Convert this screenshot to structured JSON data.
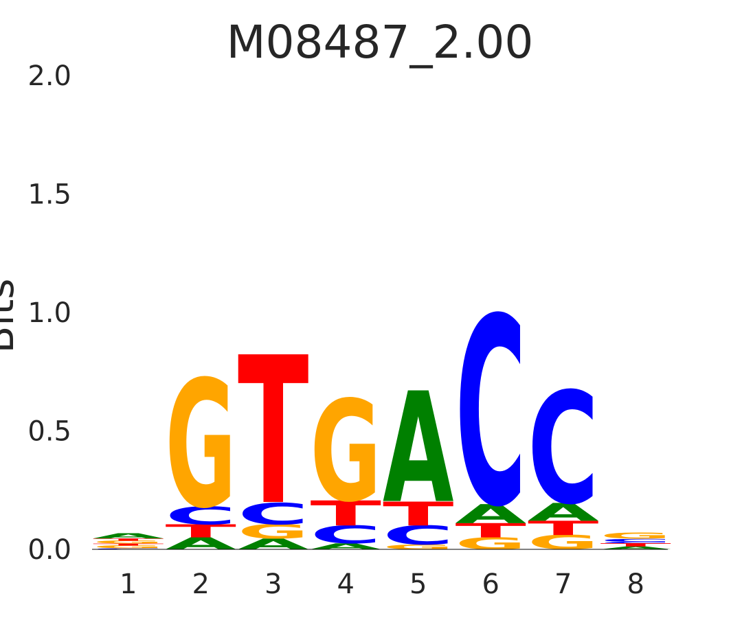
{
  "chart_data": {
    "type": "sequence-logo",
    "title": "M08487_2.00",
    "ylabel": "Bits",
    "ylim": [
      0,
      2.0
    ],
    "yticks": [
      "2.0",
      "1.5",
      "1.0",
      "0.5",
      "0.0"
    ],
    "ytick_values": [
      2.0,
      1.5,
      1.0,
      0.5,
      0.0
    ],
    "categories": [
      "1",
      "2",
      "3",
      "4",
      "5",
      "6",
      "7",
      "8"
    ],
    "colors": {
      "A": "#008000",
      "C": "#0000ff",
      "G": "#ffa500",
      "T": "#ff0000"
    },
    "positions": [
      {
        "pos": "1",
        "stack": [
          {
            "letter": "C",
            "bits": 0.004
          },
          {
            "letter": "G",
            "bits": 0.012
          },
          {
            "letter": "T",
            "bits": 0.008
          },
          {
            "letter": "G",
            "bits": 0.012
          },
          {
            "letter": "T",
            "bits": 0.01
          },
          {
            "letter": "A",
            "bits": 0.022
          }
        ]
      },
      {
        "pos": "2",
        "stack": [
          {
            "letter": "A",
            "bits": 0.05
          },
          {
            "letter": "T",
            "bits": 0.055
          },
          {
            "letter": "C",
            "bits": 0.075
          },
          {
            "letter": "G",
            "bits": 0.535
          }
        ]
      },
      {
        "pos": "3",
        "stack": [
          {
            "letter": "A",
            "bits": 0.045
          },
          {
            "letter": "G",
            "bits": 0.06
          },
          {
            "letter": "C",
            "bits": 0.09
          },
          {
            "letter": "T",
            "bits": 0.62
          }
        ]
      },
      {
        "pos": "4",
        "stack": [
          {
            "letter": "A",
            "bits": 0.025
          },
          {
            "letter": "C",
            "bits": 0.075
          },
          {
            "letter": "T",
            "bits": 0.105
          },
          {
            "letter": "G",
            "bits": 0.425
          }
        ]
      },
      {
        "pos": "5",
        "stack": [
          {
            "letter": "G",
            "bits": 0.02
          },
          {
            "letter": "C",
            "bits": 0.08
          },
          {
            "letter": "T",
            "bits": 0.1
          },
          {
            "letter": "A",
            "bits": 0.465
          }
        ]
      },
      {
        "pos": "6",
        "stack": [
          {
            "letter": "G",
            "bits": 0.05
          },
          {
            "letter": "T",
            "bits": 0.06
          },
          {
            "letter": "A",
            "bits": 0.08
          },
          {
            "letter": "C",
            "bits": 0.79
          }
        ]
      },
      {
        "pos": "7",
        "stack": [
          {
            "letter": "G",
            "bits": 0.06
          },
          {
            "letter": "T",
            "bits": 0.06
          },
          {
            "letter": "A",
            "bits": 0.075
          },
          {
            "letter": "C",
            "bits": 0.47
          }
        ]
      },
      {
        "pos": "8",
        "stack": [
          {
            "letter": "A",
            "bits": 0.012
          },
          {
            "letter": "T",
            "bits": 0.014
          },
          {
            "letter": "C",
            "bits": 0.006
          },
          {
            "letter": "C",
            "bits": 0.012
          },
          {
            "letter": "G",
            "bits": 0.026
          }
        ]
      }
    ]
  }
}
